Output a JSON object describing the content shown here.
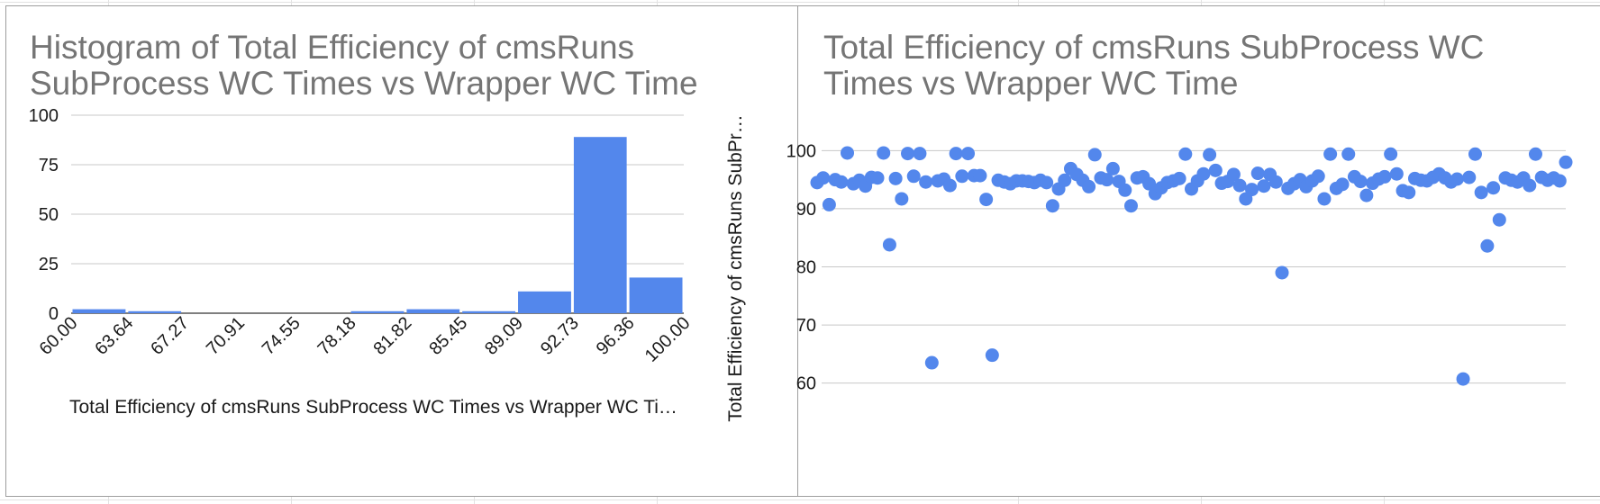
{
  "chart_data": [
    {
      "type": "bar",
      "title": "Histogram of Total Efficiency of cmsRuns SubProcess WC Times vs Wrapper WC Time",
      "title_lines": [
        "Histogram of Total Efficiency of cmsRuns",
        "SubProcess WC Times vs Wrapper WC Time"
      ],
      "xlabel": "Total Efficiency of cmsRuns SubProcess WC Times vs Wrapper WC Ti…",
      "ylabel": "",
      "x_ticks": [
        "60.00",
        "63.64",
        "67.27",
        "70.91",
        "74.55",
        "78.18",
        "81.82",
        "85.45",
        "89.09",
        "92.73",
        "96.36",
        "100.00"
      ],
      "bins": [
        [
          60.0,
          63.64
        ],
        [
          63.64,
          67.27
        ],
        [
          67.27,
          70.91
        ],
        [
          70.91,
          74.55
        ],
        [
          74.55,
          78.18
        ],
        [
          78.18,
          81.82
        ],
        [
          81.82,
          85.45
        ],
        [
          85.45,
          89.09
        ],
        [
          89.09,
          92.73
        ],
        [
          92.73,
          96.36
        ],
        [
          96.36,
          100.0
        ]
      ],
      "values": [
        2,
        1,
        0,
        0,
        0,
        1,
        2,
        1,
        11,
        89,
        18
      ],
      "y_ticks": [
        "0",
        "25",
        "50",
        "75",
        "100"
      ],
      "ylim": [
        0,
        100
      ],
      "grid": true,
      "bar_color": "#5387ec"
    },
    {
      "type": "scatter",
      "title": "Total Efficiency of cmsRuns SubProcess WC Times vs Wrapper WC Time",
      "title_lines": [
        "Total Efficiency of cmsRuns SubProcess WC",
        "Times vs Wrapper WC Time"
      ],
      "xlabel": "",
      "ylabel": "Total Efficiency of cmsRuns SubPr…",
      "y_ticks": [
        "60",
        "70",
        "80",
        "90",
        "100"
      ],
      "ylim": [
        57,
        103
      ],
      "grid": true,
      "point_color": "#5387ec",
      "values": [
        94.5,
        95.3,
        90.7,
        95.0,
        94.6,
        99.6,
        94.3,
        94.9,
        93.9,
        95.4,
        95.3,
        99.6,
        83.8,
        95.2,
        91.7,
        99.5,
        95.6,
        99.5,
        94.6,
        63.5,
        94.8,
        95.1,
        94.0,
        99.5,
        95.6,
        99.5,
        95.7,
        95.7,
        91.6,
        64.8,
        94.9,
        94.6,
        94.3,
        94.8,
        94.8,
        94.7,
        94.5,
        94.9,
        94.5,
        90.5,
        93.4,
        94.9,
        96.9,
        95.9,
        94.9,
        93.8,
        99.3,
        95.3,
        95.0,
        96.9,
        94.7,
        93.2,
        90.5,
        95.3,
        95.5,
        94.3,
        92.6,
        93.6,
        94.5,
        94.8,
        95.2,
        99.4,
        93.4,
        94.8,
        96.0,
        99.3,
        96.6,
        94.4,
        94.7,
        95.9,
        94.0,
        91.7,
        93.3,
        96.1,
        93.9,
        95.9,
        94.6,
        79.0,
        93.5,
        94.3,
        95.0,
        93.8,
        94.8,
        95.6,
        91.7,
        99.4,
        93.5,
        94.2,
        99.4,
        95.5,
        94.7,
        92.3,
        94.4,
        95.1,
        95.5,
        99.4,
        96.0,
        93.1,
        92.8,
        95.2,
        94.9,
        94.8,
        95.4,
        96.0,
        95.3,
        94.6,
        95.1,
        60.7,
        95.4,
        99.4,
        92.8,
        83.6,
        93.6,
        88.1,
        95.3,
        94.9,
        94.6,
        95.3,
        94.0,
        99.4,
        95.4,
        94.9,
        95.3,
        94.8,
        98.0
      ]
    }
  ]
}
